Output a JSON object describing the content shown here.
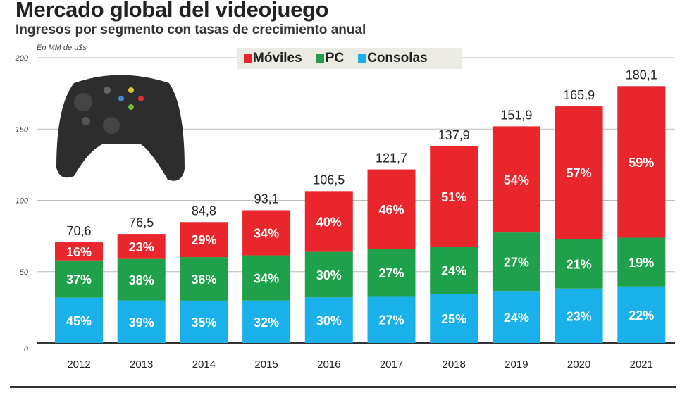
{
  "title": "Mercado global del videojuego",
  "subtitle": "Ingresos por segmento con tasas de crecimiento anual",
  "chart_data": {
    "type": "bar",
    "stacked": true,
    "title": "Mercado global del videojuego",
    "subtitle": "Ingresos por segmento con tasas de crecimiento anual",
    "ylabel": "En MM de u$s",
    "ylim": [
      0,
      200
    ],
    "yticks": [
      "0",
      "50",
      "100",
      "150",
      "200"
    ],
    "grid": true,
    "legend_position": "top",
    "categories": [
      "2012",
      "2013",
      "2014",
      "2015",
      "2016",
      "2017",
      "2018",
      "2019",
      "2020",
      "2021"
    ],
    "totals": [
      "70,6",
      "76,5",
      "84,8",
      "93,1",
      "106,5",
      "121,7",
      "137,9",
      "151,9",
      "165,9",
      "180,1"
    ],
    "total_values": [
      70.6,
      76.5,
      84.8,
      93.1,
      106.5,
      121.7,
      137.9,
      151.9,
      165.9,
      180.1
    ],
    "series": [
      {
        "name": "Consolas",
        "color": "#1ab0ea",
        "share_percent": [
          45,
          39,
          35,
          32,
          30,
          27,
          25,
          24,
          23,
          22
        ]
      },
      {
        "name": "PC",
        "color": "#1fa04a",
        "share_percent": [
          37,
          38,
          36,
          34,
          30,
          27,
          24,
          27,
          21,
          19
        ]
      },
      {
        "name": "Móviles",
        "color": "#e8262b",
        "share_percent": [
          16,
          23,
          29,
          34,
          40,
          46,
          51,
          54,
          57,
          59
        ]
      }
    ]
  },
  "legend": {
    "items": [
      {
        "label": "Móviles",
        "color": "#e8262b"
      },
      {
        "label": "PC",
        "color": "#1fa04a"
      },
      {
        "label": "Consolas",
        "color": "#1ab0ea"
      }
    ]
  },
  "image": {
    "icon": "game-controller-icon"
  }
}
